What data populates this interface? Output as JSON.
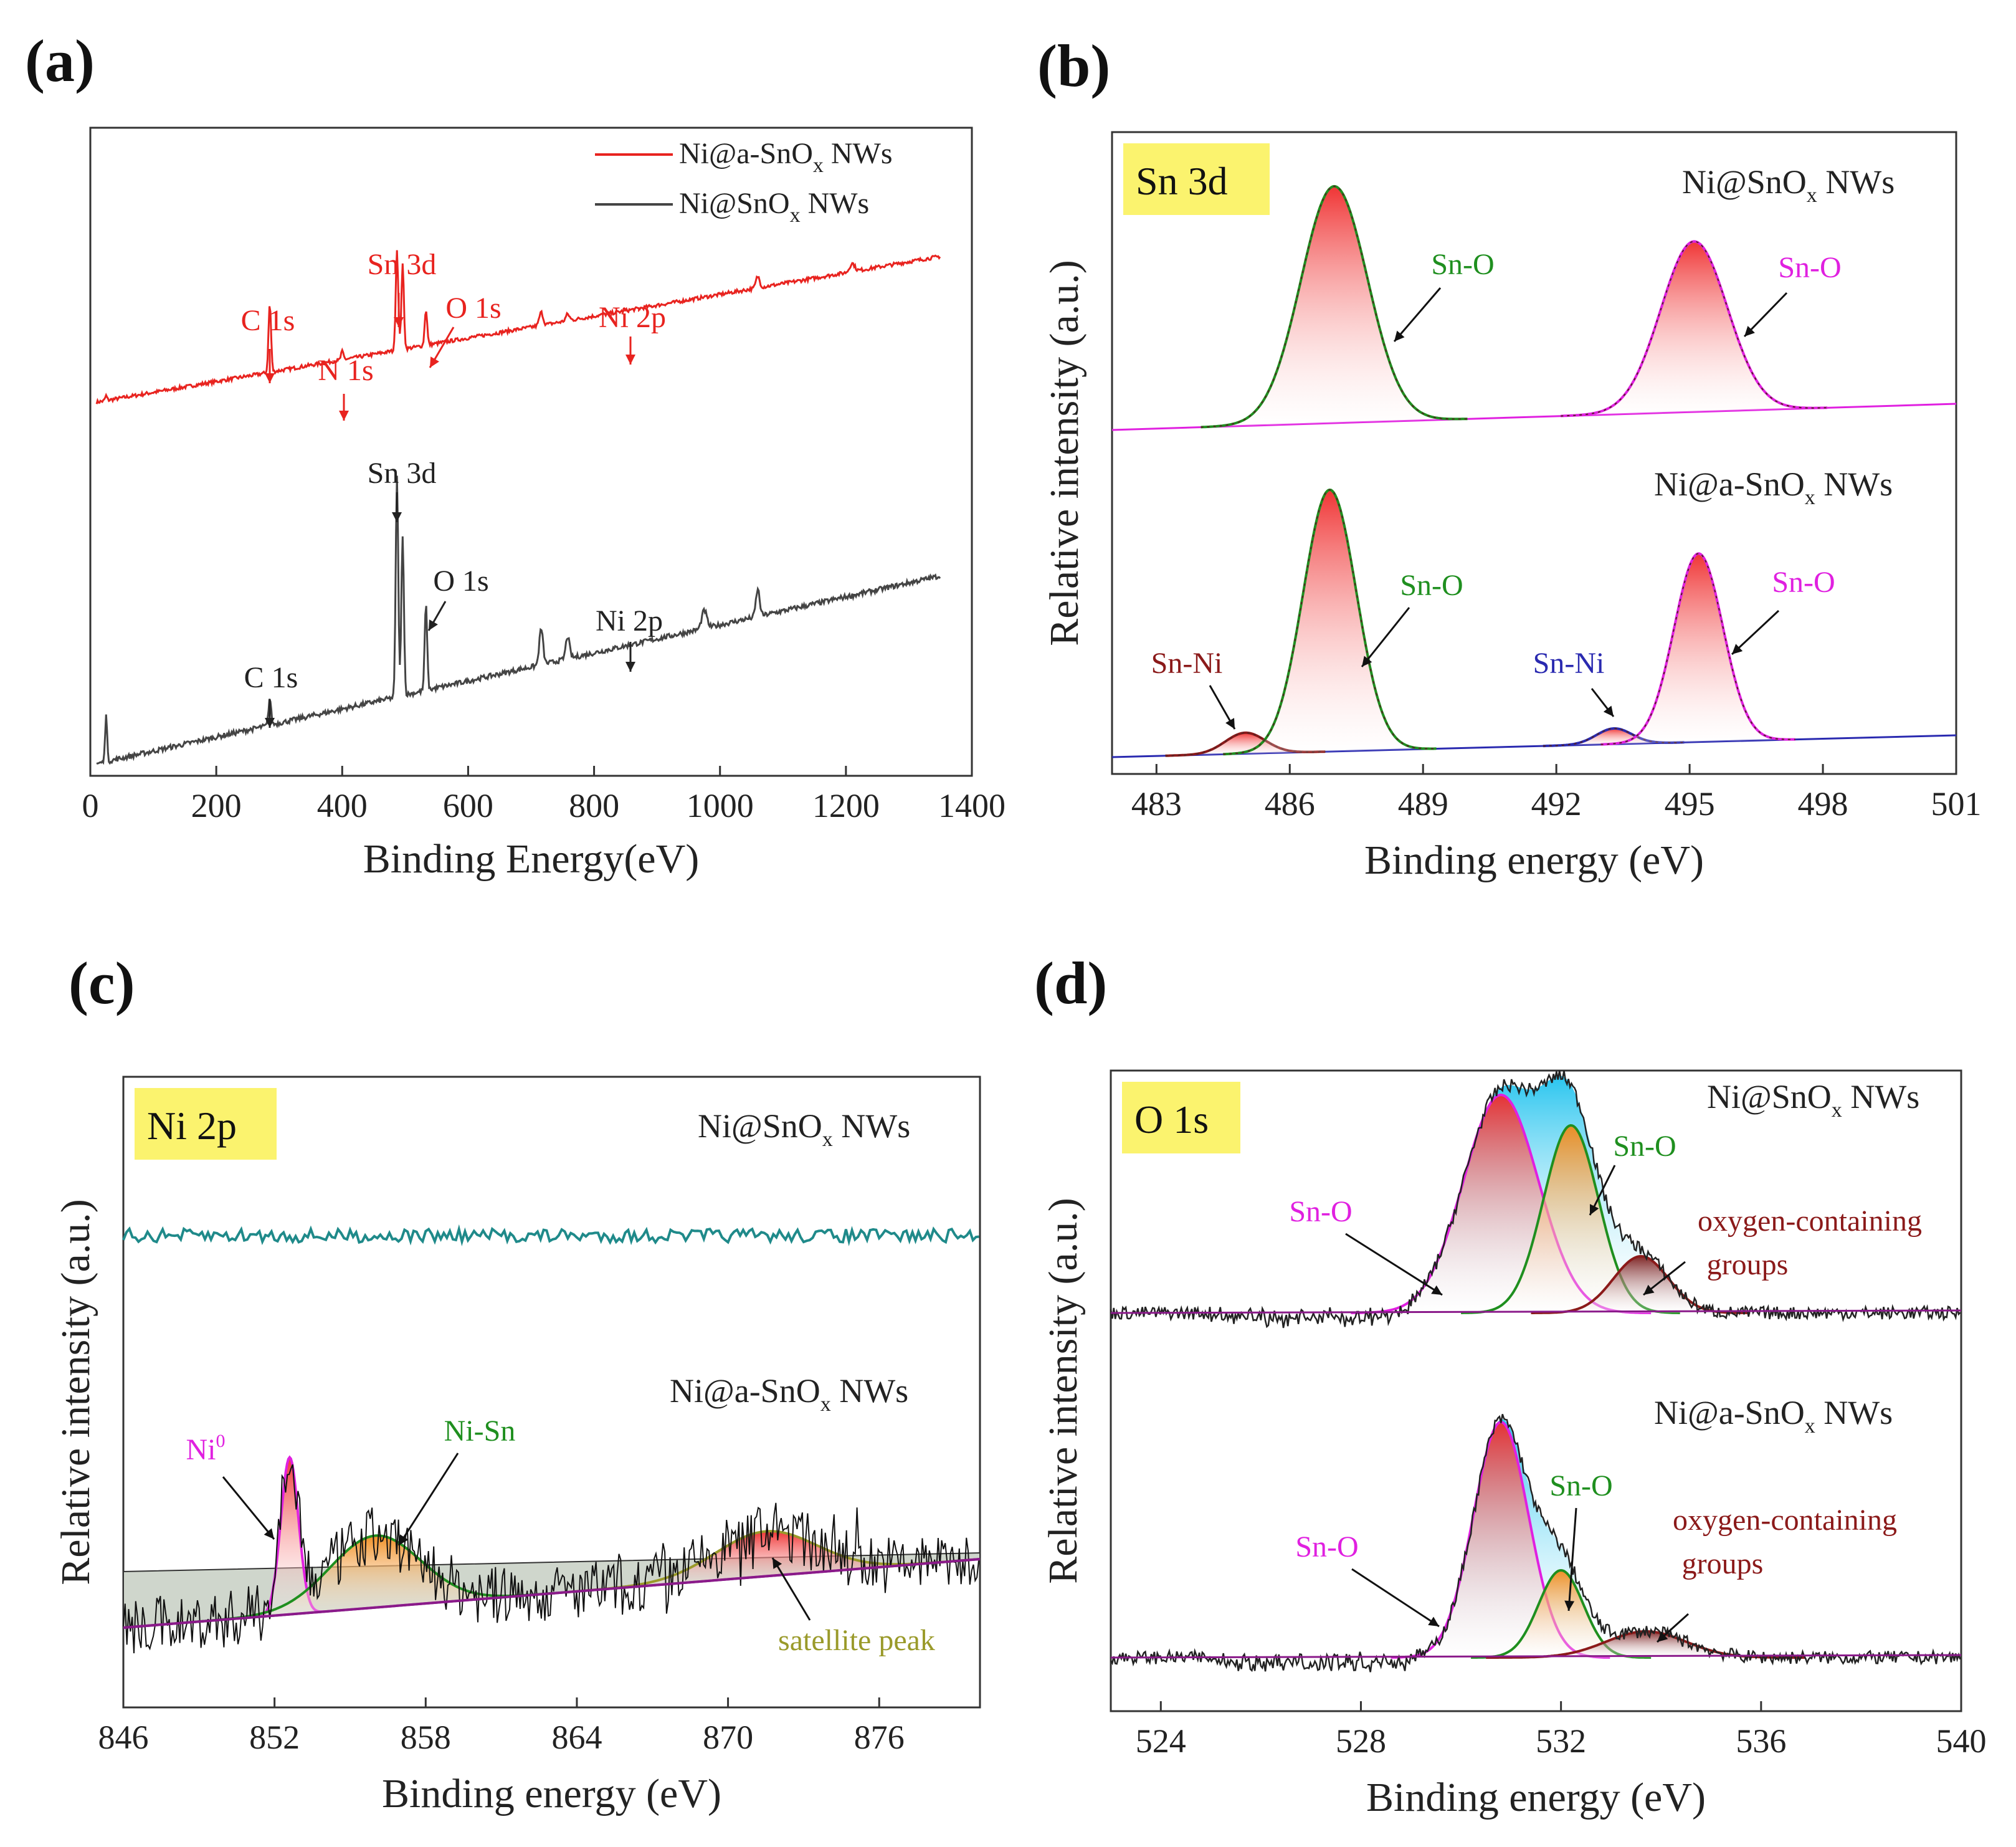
{
  "figure": {
    "panels": [
      "(a)",
      "(b)",
      "(c)",
      "(d)"
    ]
  },
  "chart_data": [
    {
      "panel": "(a)",
      "type": "line",
      "xlabel": "Binding Energy(eV)",
      "ylabel": "",
      "xlim": [
        0,
        1400
      ],
      "xticks": [
        0,
        200,
        400,
        600,
        800,
        1000,
        1200,
        1400
      ],
      "legend": {
        "placement": "top-right",
        "entries": [
          {
            "label": "Ni@a-SnO",
            "sub": "x",
            "tail": " NWs",
            "color": "#e8231f"
          },
          {
            "label": "Ni@SnO",
            "sub": "x",
            "tail": " NWs",
            "color": "#444444"
          }
        ]
      },
      "series": [
        {
          "name": "Ni@a-SnOx NWs",
          "color": "#e8231f",
          "baseline": 28,
          "slope": 0.028,
          "peaks": [
            [
              25,
              3,
              1.5
            ],
            [
              285,
              42,
              2
            ],
            [
              400,
              5,
              2
            ],
            [
              487,
              62,
              2
            ],
            [
              496,
              52,
              2
            ],
            [
              533,
              22,
              2
            ],
            [
              716,
              8,
              3
            ],
            [
              758,
              4,
              3
            ],
            [
              1060,
              7,
              3
            ],
            [
              1210,
              5,
              4
            ]
          ]
        },
        {
          "name": "Ni@SnOx NWs",
          "color": "#444444",
          "baseline": 2,
          "slope": 0.025,
          "peaks": [
            [
              25,
              22,
              1.5
            ],
            [
              285,
              12,
              2
            ],
            [
              487,
              98,
              2
            ],
            [
              496,
              72,
              2
            ],
            [
              533,
              38,
              2
            ],
            [
              716,
              16,
              3
            ],
            [
              758,
              10,
              3
            ],
            [
              975,
              8,
              4
            ],
            [
              1060,
              12,
              3
            ]
          ]
        }
      ],
      "annotations": [
        {
          "text": "C 1s",
          "x": 285,
          "series": 0,
          "color": "#e8231f"
        },
        {
          "text": "N 1s",
          "x": 400,
          "series": 0,
          "color": "#e8231f"
        },
        {
          "text": "Sn 3d",
          "x": 487,
          "series": 0,
          "color": "#e8231f"
        },
        {
          "text": "O 1s",
          "x": 533,
          "series": 0,
          "color": "#e8231f"
        },
        {
          "text": "Ni 2p",
          "x": 855,
          "series": 0,
          "color": "#e8231f"
        },
        {
          "text": "Sn 3d",
          "x": 487,
          "series": 1,
          "color": "#222222"
        },
        {
          "text": "O 1s",
          "x": 533,
          "series": 1,
          "color": "#222222"
        },
        {
          "text": "Ni 2p",
          "x": 855,
          "series": 1,
          "color": "#222222"
        },
        {
          "text": "C 1s",
          "x": 285,
          "series": 1,
          "color": "#222222"
        }
      ]
    },
    {
      "panel": "(b)",
      "type": "line",
      "region": "Sn 3d",
      "xlabel": "Binding energy (eV)",
      "ylabel": "Relative intensity (a.u.)",
      "xlim": [
        482,
        501
      ],
      "xticks": [
        483,
        486,
        489,
        492,
        495,
        498,
        501
      ],
      "samples": [
        {
          "name": "Ni@SnO",
          "sub": "x",
          "tail": " NWs",
          "peaks": [
            {
              "label": "Sn-O",
              "center": 487.0,
              "height": 100,
              "width": 0.75,
              "color": "#1f8f1f"
            },
            {
              "label": "Sn-O",
              "center": 495.1,
              "height": 72,
              "width": 0.75,
              "color": "#e020e0"
            }
          ]
        },
        {
          "name": "Ni@a-SnO",
          "sub": "x",
          "tail": " NWs",
          "peaks": [
            {
              "label": "Sn-Ni",
              "center": 485.0,
              "height": 8,
              "width": 0.45,
              "color": "#8b1a1a"
            },
            {
              "label": "Sn-O",
              "center": 486.9,
              "height": 100,
              "width": 0.6,
              "color": "#1f8f1f"
            },
            {
              "label": "Sn-Ni",
              "center": 493.3,
              "height": 6,
              "width": 0.4,
              "color": "#2a2ab0"
            },
            {
              "label": "Sn-O",
              "center": 495.2,
              "height": 72,
              "width": 0.55,
              "color": "#e020e0"
            }
          ]
        }
      ]
    },
    {
      "panel": "(c)",
      "type": "line",
      "region": "Ni 2p",
      "xlabel": "Binding energy (eV)",
      "ylabel": "Relative intensity (a.u.)",
      "xlim": [
        846,
        880
      ],
      "xticks": [
        846,
        852,
        858,
        864,
        870,
        876
      ],
      "samples": [
        {
          "name": "Ni@SnO",
          "sub": "x",
          "tail": " NWs",
          "color": "#1f8a8a",
          "peaks": []
        },
        {
          "name": "Ni@a-SnO",
          "sub": "x",
          "tail": " NWs",
          "peaks": [
            {
              "label": "Ni",
              "sup": "0",
              "center": 852.6,
              "height": 70,
              "width": 0.35,
              "color": "#e020e0"
            },
            {
              "label": "Ni-Sn",
              "center": 856.0,
              "height": 32,
              "width": 1.8,
              "color": "#1f8f1f"
            },
            {
              "label": "satellite peak",
              "center": 871.5,
              "height": 20,
              "width": 2.0,
              "color": "#9a9a2a"
            }
          ]
        }
      ]
    },
    {
      "panel": "(d)",
      "type": "line",
      "region": "O 1s",
      "xlabel": "Binding energy (eV)",
      "ylabel": "Relative intensity (a.u.)",
      "xlim": [
        523,
        540
      ],
      "xticks": [
        524,
        528,
        532,
        536,
        540
      ],
      "samples": [
        {
          "name": "Ni@SnO",
          "sub": "x",
          "tail": " NWs",
          "peaks": [
            {
              "label": "Sn-O",
              "center": 530.8,
              "height": 100,
              "width": 0.75,
              "color": "#e020e0"
            },
            {
              "label": "Sn-O",
              "center": 532.2,
              "height": 86,
              "width": 0.55,
              "color": "#1f8f1f"
            },
            {
              "label": "oxygen-containing",
              "label2": "groups",
              "center": 533.6,
              "height": 26,
              "width": 0.55,
              "color": "#8b1a1a"
            }
          ]
        },
        {
          "name": "Ni@a-SnO",
          "sub": "x",
          "tail": " NWs",
          "peaks": [
            {
              "label": "Sn-O",
              "center": 530.8,
              "height": 108,
              "width": 0.55,
              "color": "#e020e0"
            },
            {
              "label": "Sn-O",
              "center": 532.0,
              "height": 40,
              "width": 0.45,
              "color": "#1f8f1f"
            },
            {
              "label": "oxygen-containing",
              "label2": "groups",
              "center": 533.7,
              "height": 12,
              "width": 0.8,
              "color": "#8b1a1a"
            }
          ]
        }
      ]
    }
  ]
}
